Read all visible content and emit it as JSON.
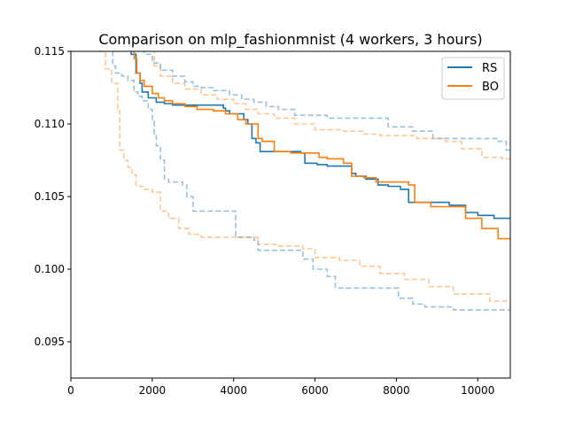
{
  "chart_data": {
    "type": "line",
    "title": "Comparison on mlp_fashionmnist (4 workers, 3 hours)",
    "xlabel": "",
    "ylabel": "",
    "xlim": [
      0,
      10800
    ],
    "ylim": [
      0.0925,
      0.115
    ],
    "x_ticks": [
      0,
      2000,
      4000,
      6000,
      8000,
      10000
    ],
    "x_tick_labels": [
      "0",
      "2000",
      "4000",
      "6000",
      "8000",
      "10000"
    ],
    "y_ticks": [
      0.095,
      0.1,
      0.105,
      0.11,
      0.115
    ],
    "y_tick_labels": [
      "0.095",
      "0.100",
      "0.105",
      "0.110",
      "0.115"
    ],
    "grid": false,
    "legend": {
      "placement": "top-right",
      "entries": [
        "RS",
        "BO"
      ]
    },
    "colors": {
      "RS": "#1f77b4",
      "BO": "#ff7f0e"
    },
    "series": [
      {
        "name": "RS",
        "style": "solid",
        "points": [
          [
            1420,
            0.1155
          ],
          [
            1480,
            0.1148
          ],
          [
            1600,
            0.1135
          ],
          [
            1700,
            0.1128
          ],
          [
            1750,
            0.1122
          ],
          [
            1900,
            0.1118
          ],
          [
            2100,
            0.1115
          ],
          [
            2300,
            0.1114
          ],
          [
            2500,
            0.1113
          ],
          [
            2700,
            0.1113
          ],
          [
            3100,
            0.1113
          ],
          [
            3500,
            0.1113
          ],
          [
            3750,
            0.1111
          ],
          [
            3800,
            0.1109
          ],
          [
            3900,
            0.1107
          ],
          [
            4150,
            0.1107
          ],
          [
            4250,
            0.1103
          ],
          [
            4350,
            0.11
          ],
          [
            4450,
            0.109
          ],
          [
            4550,
            0.1087
          ],
          [
            4650,
            0.1081
          ],
          [
            4800,
            0.1081
          ],
          [
            5300,
            0.1081
          ],
          [
            5650,
            0.108
          ],
          [
            5750,
            0.1073
          ],
          [
            6050,
            0.1072
          ],
          [
            6300,
            0.1071
          ],
          [
            6800,
            0.1071
          ],
          [
            6900,
            0.1066
          ],
          [
            7000,
            0.1064
          ],
          [
            7250,
            0.1062
          ],
          [
            7550,
            0.1058
          ],
          [
            7800,
            0.1057
          ],
          [
            8100,
            0.1055
          ],
          [
            8300,
            0.1046
          ],
          [
            8800,
            0.1046
          ],
          [
            9300,
            0.1044
          ],
          [
            9700,
            0.1039
          ],
          [
            10000,
            0.1037
          ],
          [
            10400,
            0.1035
          ],
          [
            10800,
            0.1035
          ]
        ]
      },
      {
        "name": "BO",
        "style": "solid",
        "points": [
          [
            1500,
            0.1155
          ],
          [
            1560,
            0.1145
          ],
          [
            1620,
            0.1135
          ],
          [
            1700,
            0.113
          ],
          [
            1800,
            0.1126
          ],
          [
            2000,
            0.1121
          ],
          [
            2150,
            0.1118
          ],
          [
            2300,
            0.1116
          ],
          [
            2500,
            0.1114
          ],
          [
            2800,
            0.1112
          ],
          [
            3100,
            0.111
          ],
          [
            3500,
            0.1109
          ],
          [
            3800,
            0.1107
          ],
          [
            4100,
            0.1103
          ],
          [
            4300,
            0.11
          ],
          [
            4600,
            0.109
          ],
          [
            4700,
            0.1088
          ],
          [
            5000,
            0.1081
          ],
          [
            5400,
            0.108
          ],
          [
            5800,
            0.108
          ],
          [
            6100,
            0.1077
          ],
          [
            6300,
            0.1076
          ],
          [
            6700,
            0.1073
          ],
          [
            6900,
            0.1064
          ],
          [
            7200,
            0.1063
          ],
          [
            7500,
            0.106
          ],
          [
            7900,
            0.106
          ],
          [
            8300,
            0.1058
          ],
          [
            8450,
            0.1046
          ],
          [
            8850,
            0.1043
          ],
          [
            9300,
            0.1043
          ],
          [
            9700,
            0.1035
          ],
          [
            10100,
            0.1028
          ],
          [
            10500,
            0.1021
          ],
          [
            10800,
            0.1021
          ]
        ]
      },
      {
        "name": "",
        "style": "dashed",
        "color": "#1f77b4",
        "opacity": 0.45,
        "points": [
          [
            1000,
            0.1155
          ],
          [
            1030,
            0.114
          ],
          [
            1100,
            0.1135
          ],
          [
            1250,
            0.1133
          ],
          [
            1400,
            0.113
          ],
          [
            1550,
            0.1122
          ],
          [
            1650,
            0.1119
          ],
          [
            1750,
            0.1116
          ],
          [
            1900,
            0.111
          ],
          [
            2000,
            0.1102
          ],
          [
            2050,
            0.1093
          ],
          [
            2100,
            0.1085
          ],
          [
            2200,
            0.1075
          ],
          [
            2300,
            0.1062
          ],
          [
            2400,
            0.106
          ],
          [
            2750,
            0.1058
          ],
          [
            2850,
            0.105
          ],
          [
            3000,
            0.104
          ],
          [
            3400,
            0.104
          ],
          [
            4000,
            0.104
          ],
          [
            4050,
            0.1022
          ],
          [
            4500,
            0.102
          ],
          [
            4600,
            0.1013
          ],
          [
            5200,
            0.1013
          ],
          [
            5700,
            0.1007
          ],
          [
            5950,
            0.1
          ],
          [
            6300,
            0.0995
          ],
          [
            6500,
            0.0987
          ],
          [
            7200,
            0.0987
          ],
          [
            7900,
            0.0987
          ],
          [
            8050,
            0.098
          ],
          [
            8400,
            0.0976
          ],
          [
            8700,
            0.0974
          ],
          [
            9400,
            0.0972
          ],
          [
            10400,
            0.0972
          ],
          [
            10800,
            0.0972
          ]
        ]
      },
      {
        "name": "",
        "style": "dashed",
        "color": "#ff7f0e",
        "opacity": 0.45,
        "points": [
          [
            650,
            0.1155
          ],
          [
            700,
            0.115
          ],
          [
            850,
            0.1138
          ],
          [
            1000,
            0.1128
          ],
          [
            1150,
            0.111
          ],
          [
            1200,
            0.1082
          ],
          [
            1300,
            0.1075
          ],
          [
            1400,
            0.107
          ],
          [
            1500,
            0.1065
          ],
          [
            1600,
            0.1057
          ],
          [
            1800,
            0.1055
          ],
          [
            2000,
            0.1053
          ],
          [
            2200,
            0.104
          ],
          [
            2400,
            0.1035
          ],
          [
            2650,
            0.1028
          ],
          [
            2900,
            0.1024
          ],
          [
            3200,
            0.1022
          ],
          [
            3700,
            0.1022
          ],
          [
            4100,
            0.1022
          ],
          [
            4600,
            0.1017
          ],
          [
            5100,
            0.1016
          ],
          [
            5700,
            0.1014
          ],
          [
            6000,
            0.1008
          ],
          [
            6600,
            0.1006
          ],
          [
            7100,
            0.1002
          ],
          [
            7600,
            0.0997
          ],
          [
            8200,
            0.0993
          ],
          [
            8800,
            0.0988
          ],
          [
            9000,
            0.0988
          ],
          [
            9400,
            0.0983
          ],
          [
            9800,
            0.0983
          ],
          [
            10300,
            0.0978
          ],
          [
            10800,
            0.0978
          ]
        ]
      },
      {
        "name": "",
        "style": "dashed",
        "color": "#1f77b4",
        "opacity": 0.45,
        "points": [
          [
            1700,
            0.1155
          ],
          [
            1800,
            0.1148
          ],
          [
            2000,
            0.1142
          ],
          [
            2200,
            0.1137
          ],
          [
            2500,
            0.1133
          ],
          [
            2800,
            0.1129
          ],
          [
            3000,
            0.1126
          ],
          [
            3200,
            0.1125
          ],
          [
            3500,
            0.1123
          ],
          [
            3900,
            0.112
          ],
          [
            4200,
            0.1117
          ],
          [
            4500,
            0.1115
          ],
          [
            4800,
            0.1112
          ],
          [
            5100,
            0.111
          ],
          [
            5500,
            0.1106
          ],
          [
            6300,
            0.1104
          ],
          [
            7200,
            0.1104
          ],
          [
            7800,
            0.1098
          ],
          [
            8400,
            0.1095
          ],
          [
            8900,
            0.109
          ],
          [
            9800,
            0.109
          ],
          [
            10500,
            0.1088
          ],
          [
            10700,
            0.1082
          ],
          [
            10800,
            0.1082
          ]
        ]
      },
      {
        "name": "",
        "style": "dashed",
        "color": "#ff7f0e",
        "opacity": 0.45,
        "points": [
          [
            1950,
            0.1155
          ],
          [
            2050,
            0.114
          ],
          [
            2200,
            0.1133
          ],
          [
            2500,
            0.1128
          ],
          [
            2800,
            0.1124
          ],
          [
            3200,
            0.112
          ],
          [
            3600,
            0.1117
          ],
          [
            4000,
            0.1114
          ],
          [
            4300,
            0.111
          ],
          [
            4600,
            0.1107
          ],
          [
            5000,
            0.1104
          ],
          [
            5500,
            0.11
          ],
          [
            6000,
            0.1096
          ],
          [
            6700,
            0.1095
          ],
          [
            7200,
            0.1093
          ],
          [
            7600,
            0.1092
          ],
          [
            8500,
            0.109
          ],
          [
            9200,
            0.1088
          ],
          [
            9600,
            0.1083
          ],
          [
            10000,
            0.1083
          ],
          [
            10100,
            0.1077
          ],
          [
            10600,
            0.1076
          ],
          [
            10800,
            0.1076
          ]
        ]
      }
    ]
  }
}
